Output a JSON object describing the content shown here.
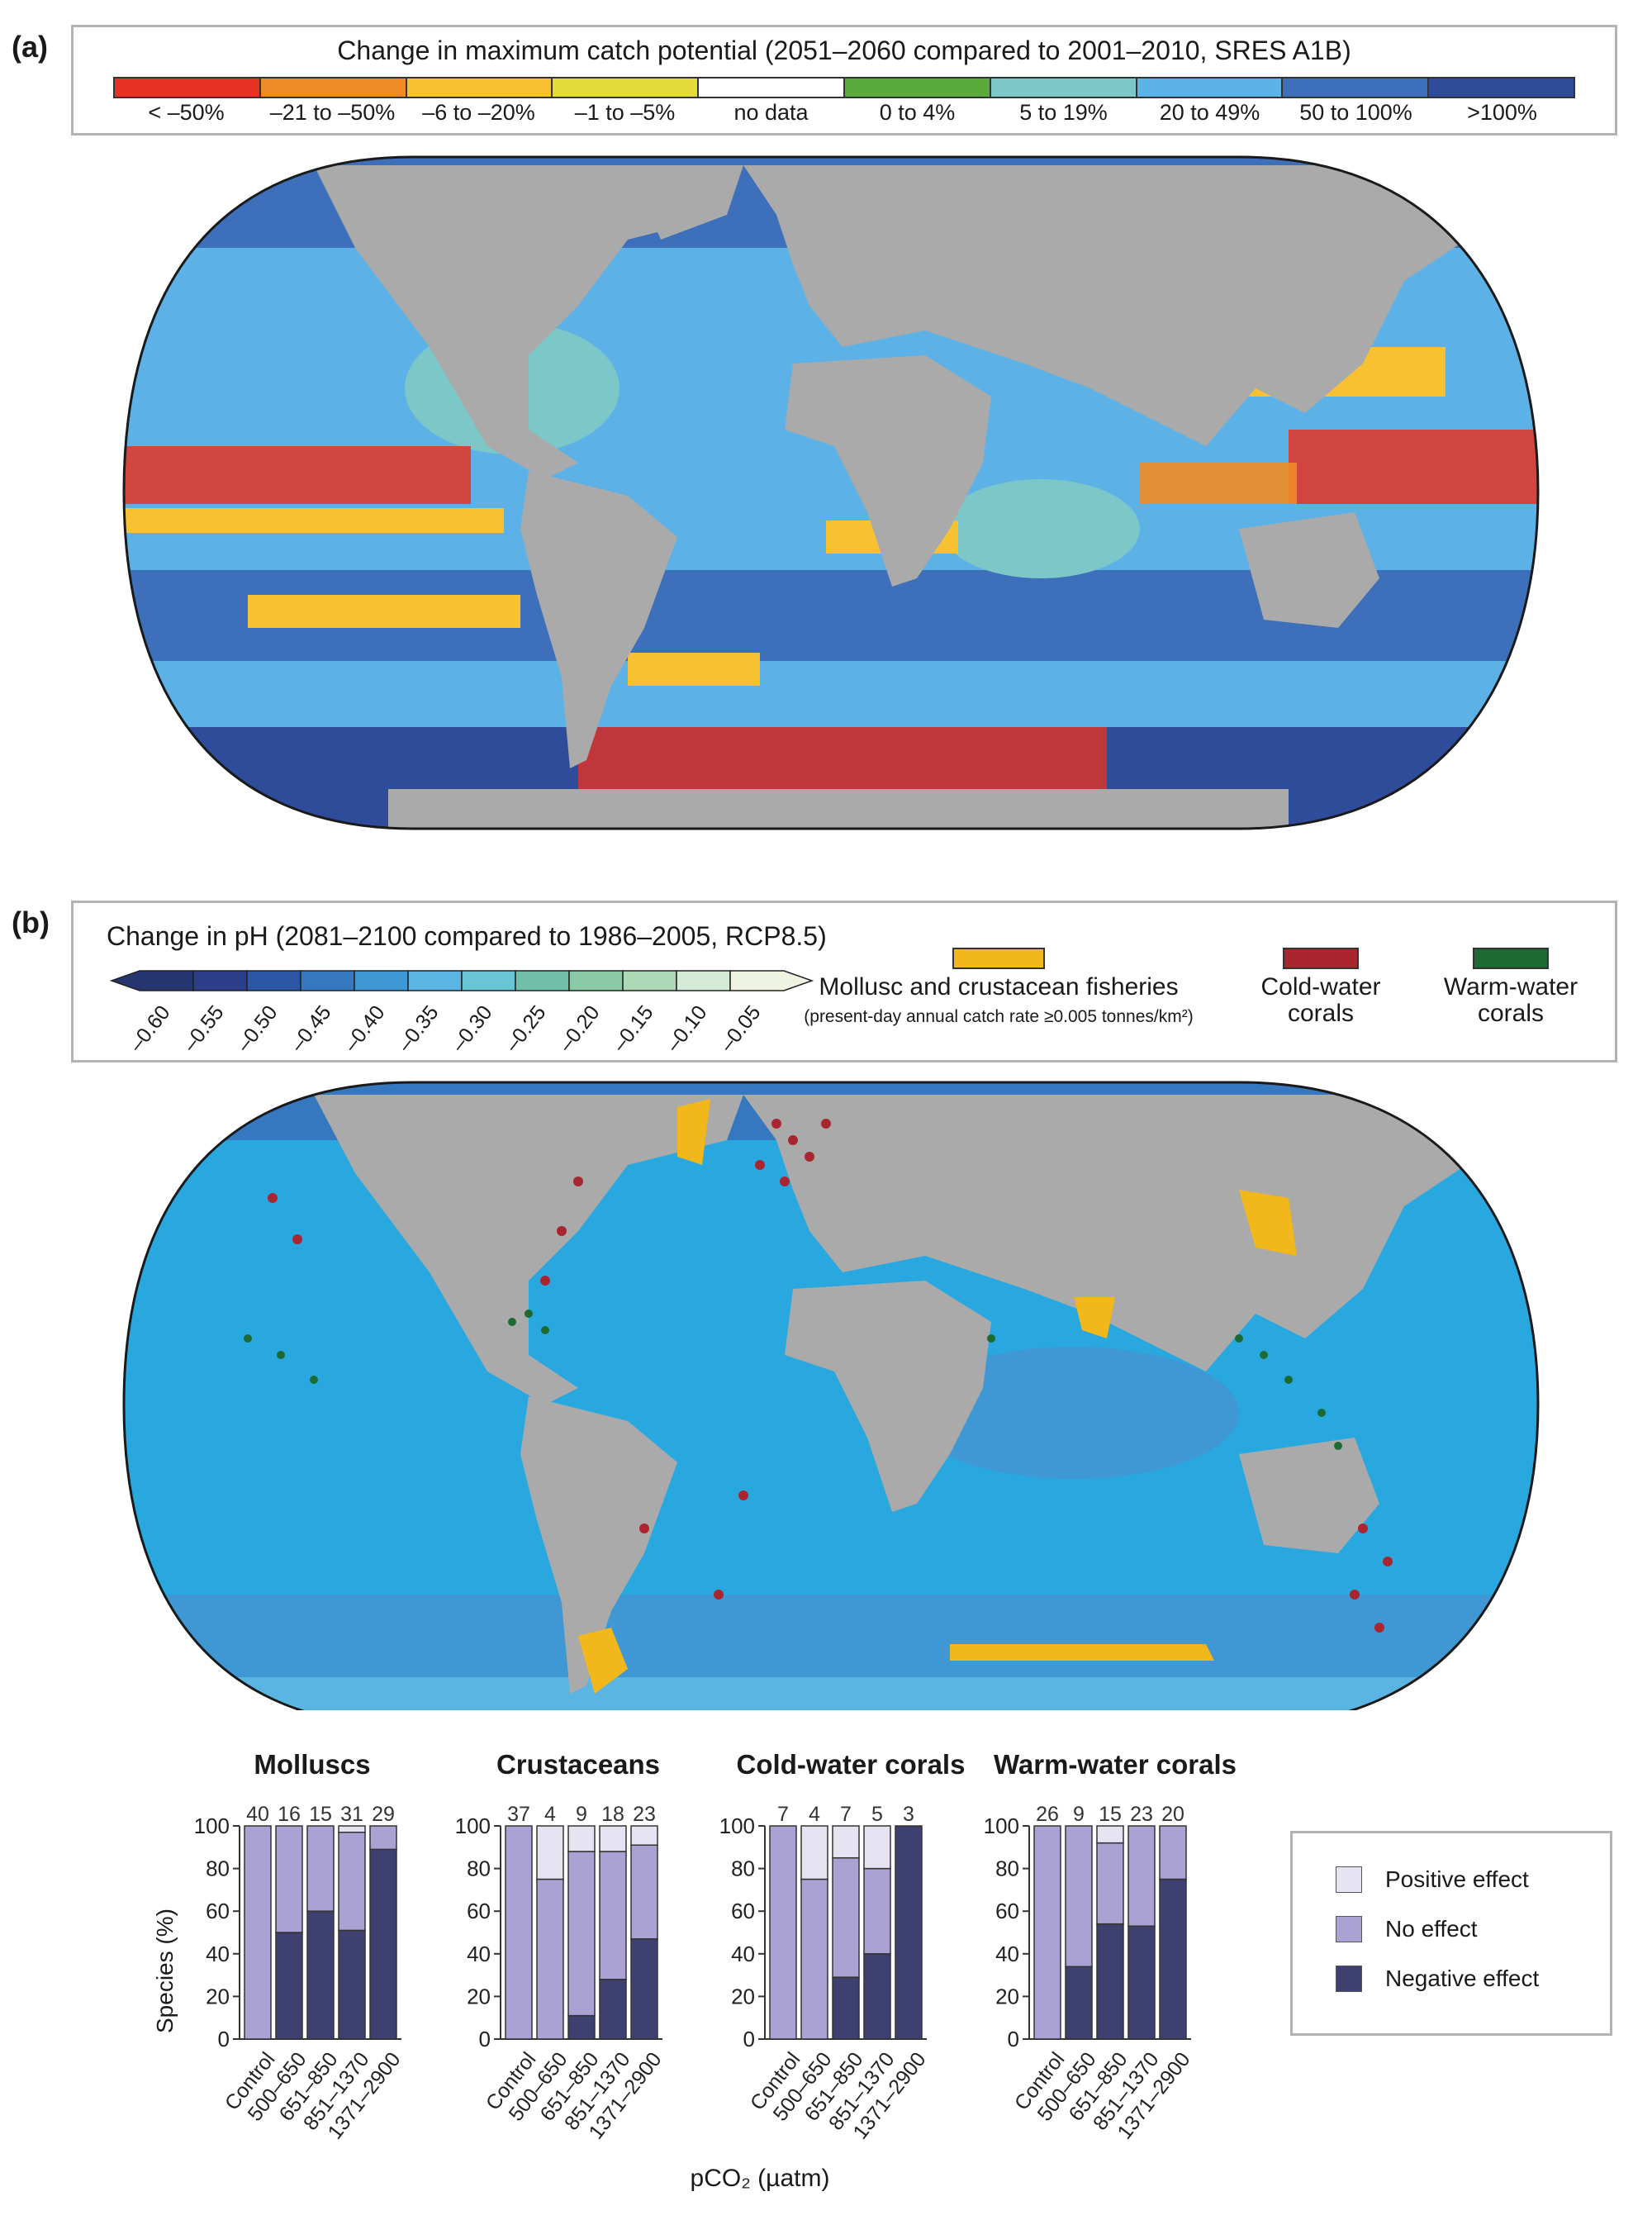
{
  "panel_a": {
    "label": "(a)",
    "legend_title": "Change in maximum catch potential (2051–2060 compared to 2001–2010, SRES A1B)",
    "legend_items": [
      {
        "label": "< –50%",
        "color": "#e53223"
      },
      {
        "label": "–21 to –50%",
        "color": "#f08a24"
      },
      {
        "label": "–6 to –20%",
        "color": "#f7c132"
      },
      {
        "label": "–1 to –5%",
        "color": "#e4dc3a"
      },
      {
        "label": "no data",
        "color": "#ffffff"
      },
      {
        "label": "0 to 4%",
        "color": "#5aaa3c"
      },
      {
        "label": "5 to 19%",
        "color": "#7cc7c8"
      },
      {
        "label": "20 to 49%",
        "color": "#5cb2e6"
      },
      {
        "label": "50 to 100%",
        "color": "#3d6fba"
      },
      {
        "label": ">100%",
        "color": "#2e4c9a"
      }
    ],
    "map": {
      "ocean_color": "#5aaedc",
      "land_color": "#aaaaaa"
    }
  },
  "panel_b": {
    "label": "(b)",
    "legend_title": "Change in pH (2081–2100 compared to 1986–2005, RCP8.5)",
    "ph_ticks": [
      "–0.60",
      "–0.55",
      "–0.50",
      "–0.45",
      "–0.40",
      "–0.35",
      "–0.30",
      "–0.25",
      "–0.20",
      "–0.15",
      "–0.10",
      "–0.05"
    ],
    "ph_colors": [
      "#25356f",
      "#2c3d8a",
      "#2b56a3",
      "#3678c0",
      "#3f97d3",
      "#5bb5e2",
      "#69c4d8",
      "#6fbfa9",
      "#8bcaa6",
      "#acd8b6",
      "#d5ead6",
      "#eef3e2"
    ],
    "keys": [
      {
        "label": "Mollusc and crustacean fisheries",
        "sub": "(present-day annual catch rate ≥0.005 tonnes/km²)",
        "color": "#f2b71b"
      },
      {
        "label": "Cold-water corals",
        "color": "#a92530"
      },
      {
        "label": "Warm-water corals",
        "color": "#1d6b32"
      }
    ],
    "map": {
      "ocean_color": "#29a8e0",
      "land_color": "#aaaaaa"
    }
  },
  "bar_charts": {
    "colors": {
      "positive": "#e6e4f3",
      "no_effect": "#a9a2d3",
      "negative": "#3e4170"
    },
    "ylabel": "Species (%)",
    "xlabel": "pCO₂ (µatm)",
    "yticks": [
      "0",
      "20",
      "40",
      "60",
      "80",
      "100"
    ],
    "categories": [
      "Control",
      "500–650",
      "651–850",
      "851–1370",
      "1371–2900"
    ],
    "legend": {
      "positive": "Positive effect",
      "no_effect": "No effect",
      "negative": "Negative effect"
    }
  },
  "chart_data": [
    {
      "type": "bar",
      "title": "Molluscs",
      "categories": [
        "Control",
        "500–650",
        "651–850",
        "851–1370",
        "1371–2900"
      ],
      "counts": [
        40,
        16,
        15,
        31,
        29
      ],
      "ylim": [
        0,
        100
      ],
      "series": [
        {
          "name": "Negative effect",
          "values": [
            0,
            50,
            60,
            51,
            89
          ]
        },
        {
          "name": "No effect",
          "values": [
            100,
            50,
            40,
            46,
            11
          ]
        },
        {
          "name": "Positive effect",
          "values": [
            0,
            0,
            0,
            3,
            0
          ]
        }
      ]
    },
    {
      "type": "bar",
      "title": "Crustaceans",
      "categories": [
        "Control",
        "500–650",
        "651–850",
        "851–1370",
        "1371–2900"
      ],
      "counts": [
        37,
        4,
        9,
        18,
        23
      ],
      "ylim": [
        0,
        100
      ],
      "series": [
        {
          "name": "Negative effect",
          "values": [
            0,
            0,
            11,
            28,
            47
          ]
        },
        {
          "name": "No effect",
          "values": [
            100,
            75,
            77,
            60,
            44
          ]
        },
        {
          "name": "Positive effect",
          "values": [
            0,
            25,
            12,
            12,
            9
          ]
        }
      ]
    },
    {
      "type": "bar",
      "title": "Cold-water corals",
      "categories": [
        "Control",
        "500–650",
        "651–850",
        "851–1370",
        "1371–2900"
      ],
      "counts": [
        7,
        4,
        7,
        5,
        3
      ],
      "ylim": [
        0,
        100
      ],
      "series": [
        {
          "name": "Negative effect",
          "values": [
            0,
            0,
            29,
            40,
            100
          ]
        },
        {
          "name": "No effect",
          "values": [
            100,
            75,
            56,
            40,
            0
          ]
        },
        {
          "name": "Positive effect",
          "values": [
            0,
            25,
            15,
            20,
            0
          ]
        }
      ]
    },
    {
      "type": "bar",
      "title": "Warm-water corals",
      "categories": [
        "Control",
        "500–650",
        "651–850",
        "851–1370",
        "1371–2900"
      ],
      "counts": [
        26,
        9,
        15,
        23,
        20
      ],
      "ylim": [
        0,
        100
      ],
      "series": [
        {
          "name": "Negative effect",
          "values": [
            0,
            34,
            54,
            53,
            75
          ]
        },
        {
          "name": "No effect",
          "values": [
            100,
            66,
            38,
            47,
            25
          ]
        },
        {
          "name": "Positive effect",
          "values": [
            0,
            0,
            8,
            0,
            0
          ]
        }
      ]
    }
  ]
}
